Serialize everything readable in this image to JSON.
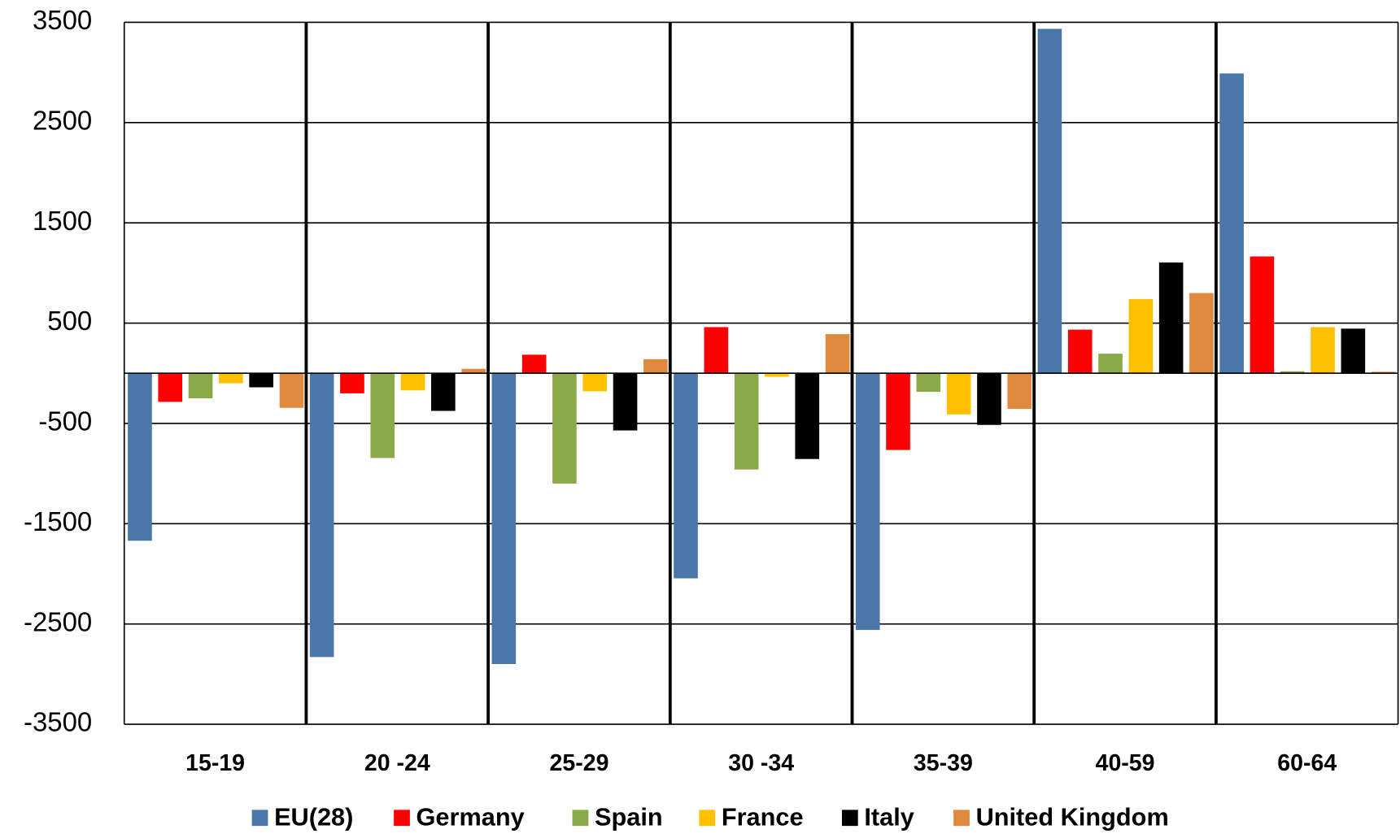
{
  "chart_data": {
    "type": "bar",
    "categories": [
      "15-19",
      "20 -24",
      "25-29",
      "30 -34",
      "35-39",
      "40-59",
      "60-64"
    ],
    "series": [
      {
        "name": "EU(28)",
        "color": "#4a76a8",
        "values": [
          -1670,
          -2830,
          -2900,
          -2045,
          -2560,
          3435,
          2990
        ]
      },
      {
        "name": "Germany",
        "color": "#ff0000",
        "values": [
          -285,
          -200,
          185,
          460,
          -765,
          435,
          1165
        ]
      },
      {
        "name": "Spain",
        "color": "#8aaa4a",
        "values": [
          -250,
          -845,
          -1100,
          -960,
          -185,
          195,
          20
        ]
      },
      {
        "name": "France",
        "color": "#ffc000",
        "values": [
          -100,
          -170,
          -180,
          -35,
          -410,
          740,
          460
        ]
      },
      {
        "name": "Italy",
        "color": "#000000",
        "values": [
          -140,
          -375,
          -570,
          -855,
          -515,
          1105,
          445
        ]
      },
      {
        "name": "United Kingdom",
        "color": "#e08a40",
        "values": [
          -345,
          45,
          140,
          390,
          -355,
          800,
          15
        ]
      }
    ],
    "ylim": [
      -3500,
      3500
    ],
    "yticks": [
      3500,
      2500,
      1500,
      500,
      -500,
      -1500,
      -2500,
      -3500
    ],
    "grid": true,
    "legend": "bottom"
  }
}
